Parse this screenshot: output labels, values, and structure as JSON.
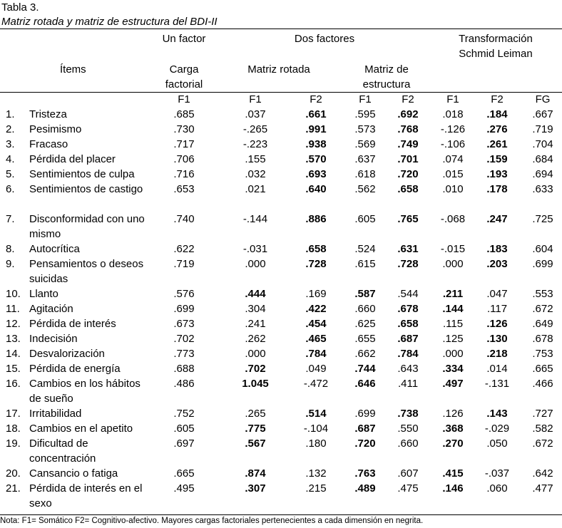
{
  "caption": {
    "number": "Tabla 3.",
    "title": "Matriz rotada y matriz de estructura del BDI-II"
  },
  "header": {
    "un_factor": "Un factor",
    "dos_factores": "Dos factores",
    "schmid_1": "Transformación",
    "schmid_2": "Schmid Leiman",
    "items": "Ítems",
    "carga_1": "Carga",
    "carga_2": "factorial",
    "matriz_rotada": "Matriz rotada",
    "estructura_1": "Matriz de",
    "estructura_2": "estructura",
    "columns": [
      "F1",
      "F1",
      "F2",
      "F1",
      "F2",
      "F1",
      "F2",
      "FG"
    ]
  },
  "rows": [
    {
      "n": "1.",
      "item": "Tristeza",
      "v": [
        ".685",
        ".037",
        ".661",
        ".595",
        ".692",
        ".018",
        ".184",
        ".667"
      ],
      "bold": [
        2,
        4,
        6
      ]
    },
    {
      "n": "2.",
      "item": "Pesimismo",
      "v": [
        ".730",
        "-.265",
        ".991",
        ".573",
        ".768",
        "-.126",
        ".276",
        ".719"
      ],
      "bold": [
        2,
        4,
        6
      ]
    },
    {
      "n": "3.",
      "item": "Fracaso",
      "v": [
        ".717",
        "-.223",
        ".938",
        ".569",
        ".749",
        "-.106",
        ".261",
        ".704"
      ],
      "bold": [
        2,
        4,
        6
      ]
    },
    {
      "n": "4.",
      "item": "Pérdida del placer",
      "v": [
        ".706",
        ".155",
        ".570",
        ".637",
        ".701",
        ".074",
        ".159",
        ".684"
      ],
      "bold": [
        2,
        4,
        6
      ]
    },
    {
      "n": "5.",
      "item": "Sentimientos de culpa",
      "v": [
        ".716",
        ".032",
        ".693",
        ".618",
        ".720",
        ".015",
        ".193",
        ".694"
      ],
      "bold": [
        2,
        4,
        6
      ]
    },
    {
      "n": "6.",
      "item": "Sentimientos de castigo",
      "v": [
        ".653",
        ".021",
        ".640",
        ".562",
        ".658",
        ".010",
        ".178",
        ".633"
      ],
      "bold": [
        2,
        4,
        6
      ]
    },
    {
      "n": "7.",
      "item": "Disconformidad con uno mismo",
      "v": [
        ".740",
        "-.144",
        ".886",
        ".605",
        ".765",
        "-.068",
        ".247",
        ".725"
      ],
      "bold": [
        2,
        4,
        6
      ]
    },
    {
      "n": "8.",
      "item": "Autocrítica",
      "v": [
        ".622",
        "-.031",
        ".658",
        ".524",
        ".631",
        "-.015",
        ".183",
        ".604"
      ],
      "bold": [
        2,
        4,
        6
      ]
    },
    {
      "n": "9.",
      "item": "Pensamientos o deseos suicidas",
      "v": [
        ".719",
        ".000",
        ".728",
        ".615",
        ".728",
        ".000",
        ".203",
        ".699"
      ],
      "bold": [
        2,
        4,
        6
      ]
    },
    {
      "n": "10.",
      "item": "Llanto",
      "v": [
        ".576",
        ".444",
        ".169",
        ".587",
        ".544",
        ".211",
        ".047",
        ".553"
      ],
      "bold": [
        1,
        3,
        5
      ]
    },
    {
      "n": "11.",
      "item": "Agitación",
      "v": [
        ".699",
        ".304",
        ".422",
        ".660",
        ".678",
        ".144",
        ".117",
        ".672"
      ],
      "bold": [
        2,
        4,
        5
      ]
    },
    {
      "n": "12.",
      "item": "Pérdida de interés",
      "v": [
        ".673",
        ".241",
        ".454",
        ".625",
        ".658",
        ".115",
        ".126",
        ".649"
      ],
      "bold": [
        2,
        4,
        6
      ]
    },
    {
      "n": "13.",
      "item": "Indecisión",
      "v": [
        ".702",
        ".262",
        ".465",
        ".655",
        ".687",
        ".125",
        ".130",
        ".678"
      ],
      "bold": [
        2,
        4,
        6
      ]
    },
    {
      "n": "14.",
      "item": "Desvalorización",
      "v": [
        ".773",
        ".000",
        ".784",
        ".662",
        ".784",
        ".000",
        ".218",
        ".753"
      ],
      "bold": [
        2,
        4,
        6
      ]
    },
    {
      "n": "15.",
      "item": "Pérdida de energía",
      "v": [
        ".688",
        ".702",
        ".049",
        ".744",
        ".643",
        ".334",
        ".014",
        ".665"
      ],
      "bold": [
        1,
        3,
        5
      ]
    },
    {
      "n": "16.",
      "item": "Cambios en los hábitos de sueño",
      "v": [
        ".486",
        "1.045",
        "-.472",
        ".646",
        ".411",
        ".497",
        "-.131",
        ".466"
      ],
      "bold": [
        1,
        3,
        5
      ]
    },
    {
      "n": "17.",
      "item": "Irritabilidad",
      "v": [
        ".752",
        ".265",
        ".514",
        ".699",
        ".738",
        ".126",
        ".143",
        ".727"
      ],
      "bold": [
        2,
        4,
        6
      ]
    },
    {
      "n": "18.",
      "item": "Cambios en el apetito",
      "v": [
        ".605",
        ".775",
        "-.104",
        ".687",
        ".550",
        ".368",
        "-.029",
        ".582"
      ],
      "bold": [
        1,
        3,
        5
      ]
    },
    {
      "n": "19.",
      "item": "Dificultad de concentración",
      "v": [
        ".697",
        ".567",
        ".180",
        ".720",
        ".660",
        ".270",
        ".050",
        ".672"
      ],
      "bold": [
        1,
        3,
        5
      ]
    },
    {
      "n": "20.",
      "item": "Cansancio o fatiga",
      "v": [
        ".665",
        ".874",
        ".132",
        ".763",
        ".607",
        ".415",
        "-.037",
        ".642"
      ],
      "bold": [
        1,
        3,
        5
      ]
    },
    {
      "n": "21.",
      "item": "Pérdida de interés en el sexo",
      "v": [
        ".495",
        ".307",
        ".215",
        ".489",
        ".475",
        ".146",
        ".060",
        ".477"
      ],
      "bold": [
        1,
        3,
        5
      ]
    }
  ],
  "note": "Nota: F1= Somático F2= Cognitivo-afectivo. Mayores cargas factoriales pertenecientes a cada dimensión en negrita."
}
